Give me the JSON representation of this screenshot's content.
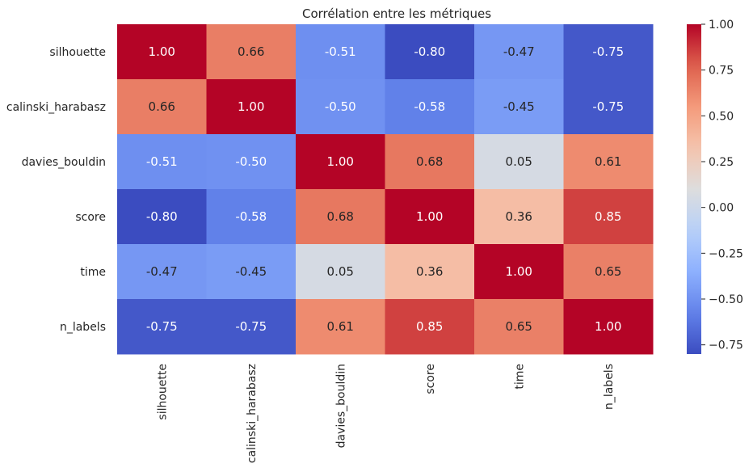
{
  "chart_data": {
    "type": "heatmap",
    "title": "Corrélation entre les métriques",
    "rows": [
      "silhouette",
      "calinski_harabasz",
      "davies_bouldin",
      "score",
      "time",
      "n_labels"
    ],
    "columns": [
      "silhouette",
      "calinski_harabasz",
      "davies_bouldin",
      "score",
      "time",
      "n_labels"
    ],
    "values": [
      [
        1.0,
        0.66,
        -0.51,
        -0.8,
        -0.47,
        -0.75
      ],
      [
        0.66,
        1.0,
        -0.5,
        -0.58,
        -0.45,
        -0.75
      ],
      [
        -0.51,
        -0.5,
        1.0,
        0.68,
        0.05,
        0.61
      ],
      [
        -0.8,
        -0.58,
        0.68,
        1.0,
        0.36,
        0.85
      ],
      [
        -0.47,
        -0.45,
        0.05,
        0.36,
        1.0,
        0.65
      ],
      [
        -0.75,
        -0.75,
        0.61,
        0.85,
        0.65,
        1.0
      ]
    ],
    "value_format": "0.00",
    "colormap": "coolwarm",
    "color_range": [
      -0.8,
      1.0
    ],
    "colorbar": {
      "ticks": [
        1.0,
        0.75,
        0.5,
        0.25,
        0.0,
        -0.25,
        -0.5,
        -0.75
      ],
      "tick_labels": [
        "1.00",
        "0.75",
        "0.50",
        "0.25",
        "0.00",
        "−0.25",
        "−0.50",
        "−0.75"
      ]
    },
    "grid": false
  }
}
